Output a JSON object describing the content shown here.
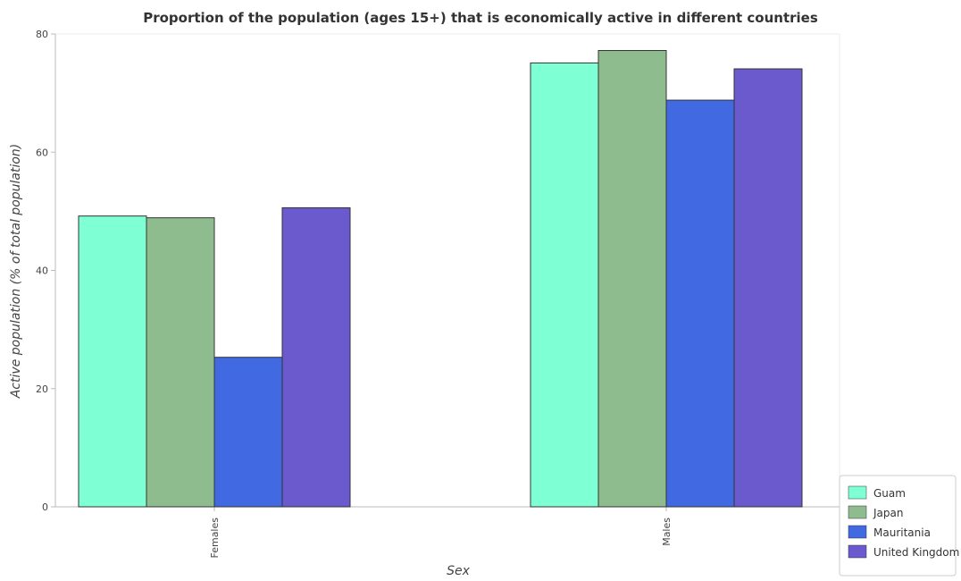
{
  "chart_data": {
    "type": "bar",
    "title": "Proportion of the population (ages 15+) that is economically active in different countries",
    "xlabel": "Sex",
    "ylabel": "Active population (% of total population)",
    "categories": [
      "Females",
      "Males"
    ],
    "ylim": [
      0,
      80
    ],
    "yticks": [
      0,
      20,
      40,
      60,
      80
    ],
    "series": [
      {
        "name": "Guam",
        "color": "#7fffd4",
        "values": [
          49.2,
          75.1
        ]
      },
      {
        "name": "Japan",
        "color": "#8fbc8f",
        "values": [
          48.9,
          77.2
        ]
      },
      {
        "name": "Mauritania",
        "color": "#4169e1",
        "values": [
          25.3,
          68.8
        ]
      },
      {
        "name": "United Kingdom",
        "color": "#6a5acd",
        "values": [
          50.6,
          74.1
        ]
      }
    ],
    "legend_position": "bottom-right",
    "grid": false
  }
}
